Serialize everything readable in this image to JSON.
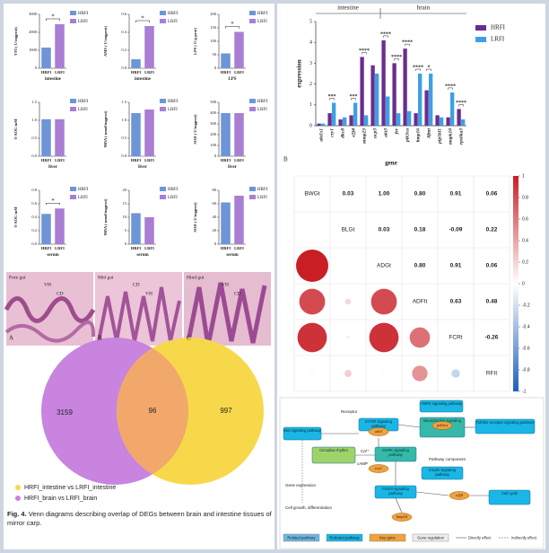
{
  "chart_data": [
    {
      "type": "bar",
      "ylabel": "VFI ( U/mgprot)",
      "xlabel": "intestine",
      "categories": [
        "HRFI",
        "LRFI"
      ],
      "values": [
        1150,
        2450
      ],
      "colors": [
        "#6d95d8",
        "#a97ed3"
      ],
      "ylim": [
        0,
        3000
      ],
      "yticks": [
        0,
        1000,
        2000,
        3000
      ],
      "significance": "*"
    },
    {
      "type": "bar",
      "ylabel": "AMS ( U/mgprot)",
      "xlabel": "intestine",
      "categories": [
        "HRFI",
        "LRFI"
      ],
      "values": [
        0.1,
        0.47
      ],
      "colors": [
        "#6d95d8",
        "#a97ed3"
      ],
      "ylim": [
        0,
        0.6
      ],
      "yticks": [
        {
          "value": 0,
          "label": "0.0"
        },
        0.2,
        0.4,
        0.6
      ],
      "significance": "*"
    },
    {
      "type": "bar",
      "ylabel": "LPS ( U/g·prot)",
      "xlabel": "LPS",
      "categories": [
        "HRFI",
        "LRFI"
      ],
      "values": [
        55,
        135
      ],
      "colors": [
        "#6d95d8",
        "#a97ed3"
      ],
      "ylim": [
        0,
        200
      ],
      "yticks": [
        0,
        50,
        100,
        150,
        200
      ],
      "significance": "*"
    },
    {
      "type": "bar",
      "ylabel": "T-AOC/mM",
      "xlabel": "liver",
      "categories": [
        "HRFI",
        "LRFI"
      ],
      "values": [
        1.03,
        1.03
      ],
      "colors": [
        "#6d95d8",
        "#a97ed3"
      ],
      "ylim": [
        0,
        1.5
      ],
      "yticks": [
        {
          "value": 0,
          "label": "0.0"
        },
        0.5,
        {
          "value": 1,
          "label": "1.0"
        },
        1.5
      ]
    },
    {
      "type": "bar",
      "ylabel": "MDA ( nmol/mgprot)",
      "xlabel": "liver",
      "categories": [
        "HRFI",
        "LRFI"
      ],
      "values": [
        1.2,
        1.3
      ],
      "colors": [
        "#6d95d8",
        "#a97ed3"
      ],
      "ylim": [
        0,
        1.5
      ],
      "yticks": [
        {
          "value": 0,
          "label": "0.0"
        },
        0.5,
        {
          "value": 1,
          "label": "1.0"
        },
        1.5
      ]
    },
    {
      "type": "bar",
      "ylabel": "SOD ( U/mgprot)",
      "xlabel": "liver",
      "categories": [
        "HRFI",
        "LRFI"
      ],
      "values": [
        400,
        400
      ],
      "colors": [
        "#6d95d8",
        "#a97ed3"
      ],
      "ylim": [
        0,
        500
      ],
      "yticks": [
        0,
        100,
        200,
        300,
        400,
        500
      ]
    },
    {
      "type": "bar",
      "ylabel": "T-AOC/mM",
      "xlabel": "serum",
      "categories": [
        "HRFI",
        "LRFI"
      ],
      "values": [
        0.45,
        0.53
      ],
      "colors": [
        "#6d95d8",
        "#a97ed3"
      ],
      "ylim": [
        0,
        0.8
      ],
      "yticks": [
        {
          "value": 0,
          "label": "0.0"
        },
        0.2,
        0.4,
        0.6,
        0.8
      ],
      "significance": "*"
    },
    {
      "type": "bar",
      "ylabel": "MDA ( nmol/mgprot)",
      "xlabel": "serum",
      "categories": [
        "HRFI",
        "LRFI"
      ],
      "values": [
        11.5,
        10
      ],
      "colors": [
        "#6d95d8",
        "#a97ed3"
      ],
      "ylim": [
        0,
        20
      ],
      "yticks": [
        0,
        5,
        10,
        15,
        20
      ]
    },
    {
      "type": "bar",
      "ylabel": "SOD ( U/mgprot)",
      "xlabel": "serum",
      "categories": [
        "HRFI",
        "LRFI"
      ],
      "values": [
        62,
        72
      ],
      "colors": [
        "#6d95d8",
        "#a97ed3"
      ],
      "ylim": [
        0,
        80
      ],
      "yticks": [
        0,
        20,
        40,
        60,
        80
      ]
    },
    {
      "type": "grouped_bar",
      "panel": "B",
      "xlabel": "gene",
      "ylabel": "expression",
      "group_labels": [
        "intestine",
        "brain"
      ],
      "categories": [
        "akt1s1",
        "cry1",
        "dkc8",
        "e2f4",
        "mmp23",
        "ucp3",
        "akt3",
        "fer",
        "pik3ca",
        "bmp16",
        "lifmt",
        "pip5kl1",
        "mapk10",
        "rps6ka3"
      ],
      "series": [
        {
          "name": "HRFI",
          "color": "#6a2d8f",
          "values": [
            0.1,
            0.6,
            0.3,
            0.5,
            3.3,
            2.9,
            4.1,
            3.0,
            3.7,
            0.6,
            1.7,
            0.5,
            0.4,
            0.8
          ]
        },
        {
          "name": "LRFI",
          "color": "#3ea0e4",
          "values": [
            0.1,
            1.1,
            0.4,
            1.1,
            0.5,
            2.5,
            1.4,
            0.6,
            0.7,
            2.5,
            2.5,
            0.4,
            1.6,
            0.3
          ]
        }
      ],
      "significance": [
        null,
        "***",
        null,
        "***",
        "****",
        null,
        "****",
        "****",
        "****",
        "****",
        "*",
        null,
        "****",
        "****"
      ],
      "ylim": [
        0,
        5
      ],
      "yticks": [
        0,
        1,
        2,
        3,
        4,
        5
      ]
    },
    {
      "type": "correlation",
      "variables": [
        "BWGt",
        "BLGt",
        "ADGt",
        "ADFIt",
        "FCRt",
        "RFIt"
      ],
      "values": [
        [
          0.03,
          1.0,
          0.8,
          0.91,
          0.06
        ],
        [
          0.03,
          0.18,
          -0.09,
          0.22
        ],
        [
          0.8,
          0.91,
          0.06
        ],
        [
          0.63,
          0.48
        ],
        [
          -0.26
        ]
      ],
      "value_labels": [
        [
          "0.03",
          "1.00",
          "0.80",
          "0.91",
          "0.06"
        ],
        [
          "0.03",
          "0.18",
          "-0.09",
          "0.22"
        ],
        [
          "0.80",
          "0.91",
          "0.06"
        ],
        [
          "0.63",
          "0.48"
        ],
        [
          "-0.26"
        ]
      ],
      "clim": [
        -1,
        1
      ],
      "colorbar_ticks": [
        1,
        0.8,
        0.6,
        0.4,
        0.2,
        0,
        -0.2,
        -0.4,
        -0.6,
        -0.8,
        -1
      ]
    },
    {
      "type": "venn",
      "sets": [
        {
          "name": "HRFI_intestine vs LRFI_intestine",
          "color": "#f7d84a"
        },
        {
          "name": "HRFI_brain vs LRFI_brain",
          "color": "#c884de"
        }
      ],
      "values": [
        3159,
        96,
        997
      ]
    }
  ],
  "histology": [
    {
      "letter": "A",
      "title": "Fore gut",
      "labels": [
        "VH",
        "CD"
      ]
    },
    {
      "letter": "B",
      "title": "Mid gut",
      "labels": [
        "CD",
        "VH"
      ]
    },
    {
      "letter": "C",
      "title": "Hind gut",
      "labels": [
        "VH",
        "CD"
      ]
    }
  ],
  "caption": {
    "label": "Fig. 4.",
    "text": "Venn diagrams describing overlap of DEGs between brain and intestine tissues of mirror carp."
  },
  "diagram": {
    "nodes": [
      "mTOR signaling pathway",
      "AMPK signaling pathway",
      "Neurotrophin signaling pathway",
      "pik3ca",
      "Toll-like receptor signaling pathway",
      "Wnt signaling pathway",
      "akt3",
      "Circadian rhythm",
      "MAPK signaling pathway",
      "cry1",
      "Insulin signaling pathway",
      "FOXO signaling pathway",
      "e2f4",
      "Cell cycle",
      "bmp16"
    ],
    "notes": [
      "Receptor",
      "Ca²⁺",
      "cAMP",
      "Pathway component",
      "Gene expression",
      "Cell growth, differentiation"
    ],
    "legend": [
      "Related pathway",
      "Relevant pathway",
      "Key gene",
      "Gene regulation",
      "Directly effect",
      "Indirectly effect"
    ]
  }
}
